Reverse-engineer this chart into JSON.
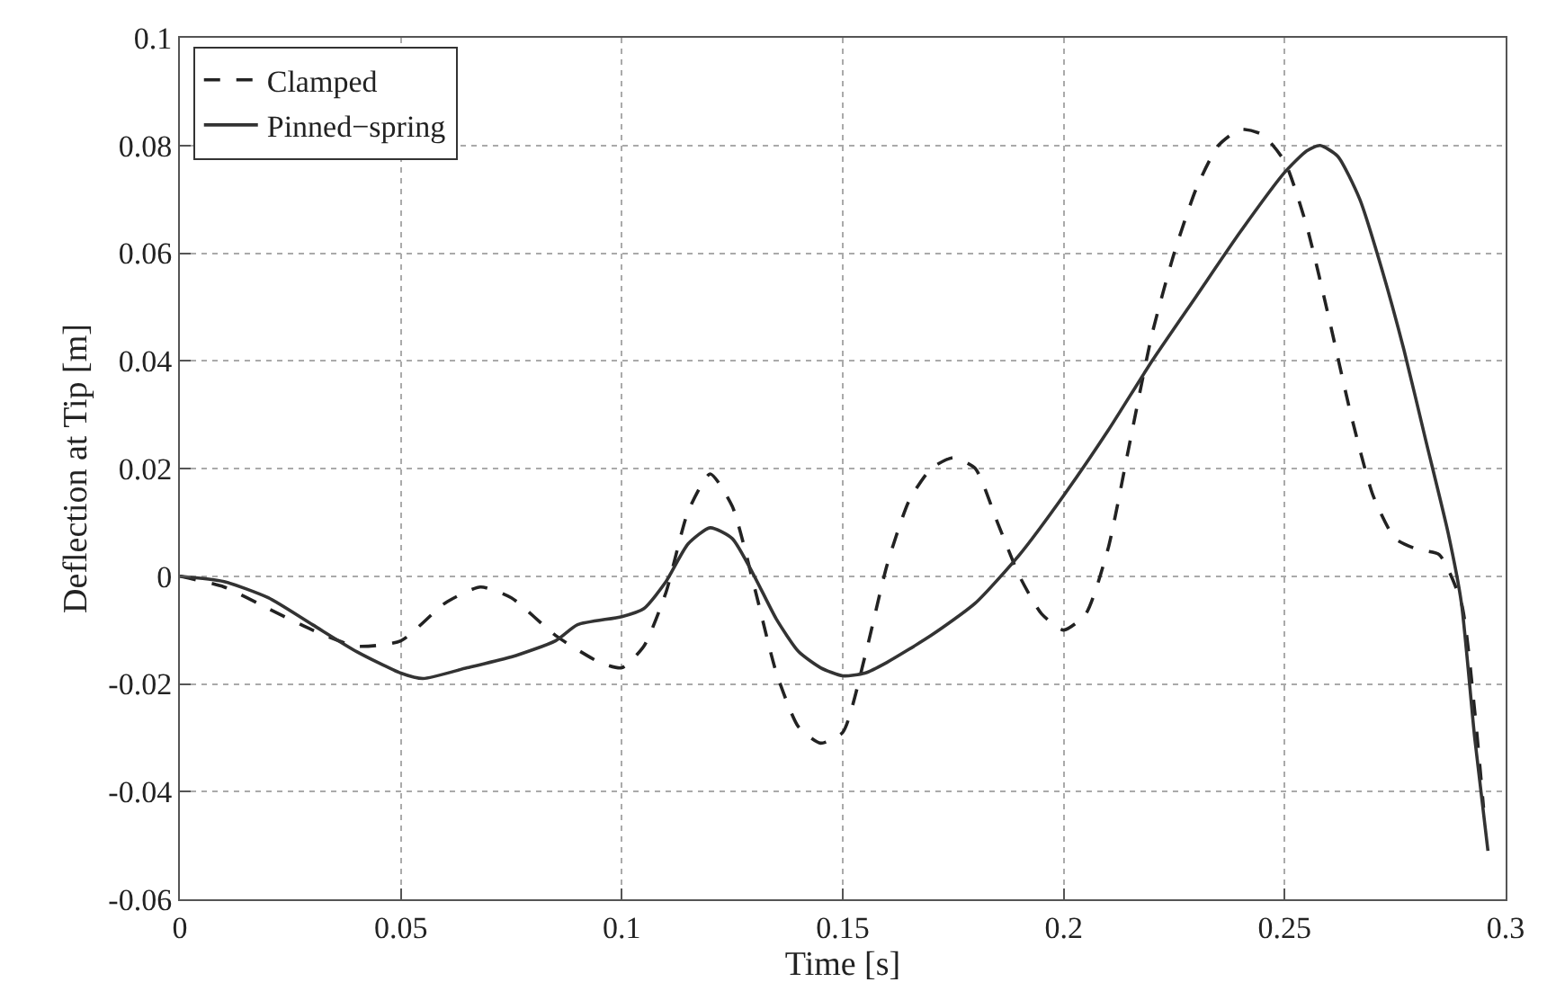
{
  "chart_data": {
    "type": "line",
    "xlabel": "Time [s]",
    "ylabel": "Deflection at Tip [m]",
    "xlim": [
      0,
      0.3
    ],
    "xticks": [
      0,
      0.05,
      0.1,
      0.15,
      0.2,
      0.25,
      0.3
    ],
    "ylim": [
      -0.06,
      0.1
    ],
    "yticks": [
      -0.06,
      -0.04,
      -0.02,
      0,
      0.02,
      0.04,
      0.06,
      0.08,
      0.1
    ],
    "grid": true,
    "legend": "top left",
    "series": [
      {
        "name": "Clamped",
        "color": "#222222",
        "line_style": "dashed",
        "x": [
          0,
          0.01,
          0.02,
          0.03,
          0.04,
          0.05,
          0.06,
          0.068,
          0.075,
          0.085,
          0.095,
          0.1,
          0.105,
          0.11,
          0.115,
          0.12,
          0.125,
          0.13,
          0.135,
          0.14,
          0.145,
          0.15,
          0.155,
          0.16,
          0.165,
          0.17,
          0.175,
          0.18,
          0.185,
          0.19,
          0.195,
          0.2,
          0.205,
          0.21,
          0.215,
          0.22,
          0.225,
          0.23,
          0.235,
          0.24,
          0.245,
          0.25,
          0.255,
          0.26,
          0.265,
          0.27,
          0.275,
          0.28,
          0.285,
          0.29,
          0.293,
          0.295
        ],
        "values": [
          0,
          -0.002,
          -0.006,
          -0.01,
          -0.013,
          -0.012,
          -0.005,
          -0.002,
          -0.004,
          -0.011,
          -0.016,
          -0.017,
          -0.013,
          -0.003,
          0.012,
          0.019,
          0.013,
          -0.002,
          -0.018,
          -0.028,
          -0.031,
          -0.029,
          -0.015,
          0.002,
          0.014,
          0.02,
          0.022,
          0.02,
          0.01,
          0.0,
          -0.007,
          -0.01,
          -0.007,
          0.005,
          0.025,
          0.045,
          0.06,
          0.072,
          0.08,
          0.083,
          0.082,
          0.077,
          0.065,
          0.048,
          0.03,
          0.015,
          0.007,
          0.005,
          0.004,
          -0.005,
          -0.025,
          -0.043
        ]
      },
      {
        "name": "Pinned−spring",
        "color": "#333333",
        "line_style": "solid",
        "x": [
          0,
          0.01,
          0.02,
          0.03,
          0.04,
          0.05,
          0.055,
          0.065,
          0.075,
          0.085,
          0.09,
          0.1,
          0.105,
          0.11,
          0.115,
          0.12,
          0.125,
          0.13,
          0.135,
          0.14,
          0.145,
          0.15,
          0.155,
          0.16,
          0.17,
          0.18,
          0.19,
          0.2,
          0.21,
          0.22,
          0.23,
          0.24,
          0.25,
          0.255,
          0.258,
          0.262,
          0.267,
          0.272,
          0.277,
          0.282,
          0.287,
          0.29,
          0.293,
          0.296
        ],
        "values": [
          0,
          -0.001,
          -0.004,
          -0.009,
          -0.014,
          -0.018,
          -0.019,
          -0.017,
          -0.015,
          -0.012,
          -0.009,
          -0.0075,
          -0.006,
          -0.001,
          0.006,
          0.009,
          0.007,
          0.0,
          -0.008,
          -0.014,
          -0.017,
          -0.0185,
          -0.018,
          -0.016,
          -0.011,
          -0.005,
          0.004,
          0.015,
          0.027,
          0.04,
          0.052,
          0.064,
          0.075,
          0.079,
          0.08,
          0.078,
          0.07,
          0.057,
          0.042,
          0.025,
          0.008,
          -0.005,
          -0.03,
          -0.051
        ]
      }
    ]
  }
}
